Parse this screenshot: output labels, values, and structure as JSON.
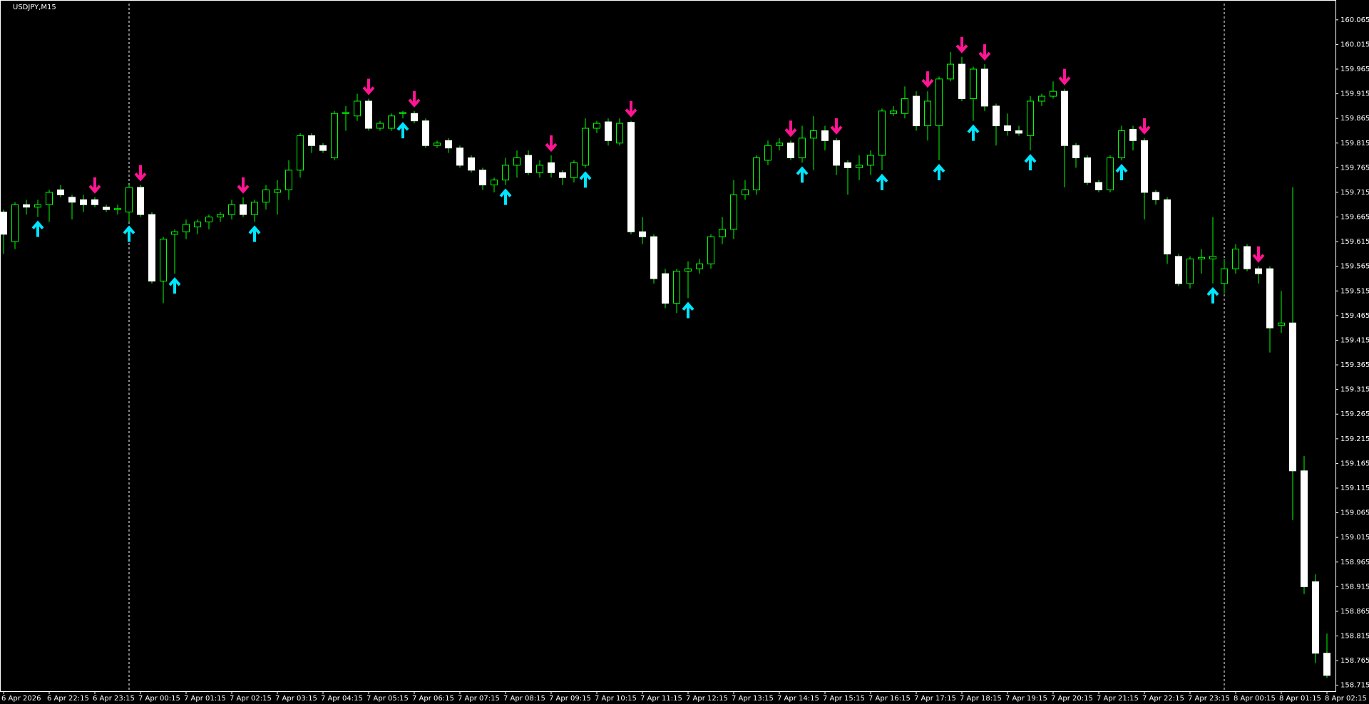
{
  "chart_data": {
    "type": "candlestick",
    "title": "USDJPY,M15",
    "categories": [
      "6 Apr 2026",
      null,
      null,
      null,
      "6 Apr 22:15",
      null,
      null,
      null,
      "6 Apr 23:15",
      null,
      null,
      null,
      "7 Apr 00:15",
      null,
      null,
      null,
      "7 Apr 01:15",
      null,
      null,
      null,
      "7 Apr 02:15",
      null,
      null,
      null,
      "7 Apr 03:15",
      null,
      null,
      null,
      "7 Apr 04:15",
      null,
      null,
      null,
      "7 Apr 05:15",
      null,
      null,
      null,
      "7 Apr 06:15",
      null,
      null,
      null,
      "7 Apr 07:15",
      null,
      null,
      null,
      "7 Apr 08:15",
      null,
      null,
      null,
      "7 Apr 09:15",
      null,
      null,
      null,
      "7 Apr 10:15",
      null,
      null,
      null,
      "7 Apr 11:15",
      null,
      null,
      null,
      "7 Apr 12:15",
      null,
      null,
      null,
      "7 Apr 13:15",
      null,
      null,
      null,
      "7 Apr 14:15",
      null,
      null,
      null,
      "7 Apr 15:15",
      null,
      null,
      null,
      "7 Apr 16:15",
      null,
      null,
      null,
      "7 Apr 17:15",
      null,
      null,
      null,
      "7 Apr 18:15",
      null,
      null,
      null,
      "7 Apr 19:15",
      null,
      null,
      null,
      "7 Apr 20:15",
      null,
      null,
      null,
      "7 Apr 21:15",
      null,
      null,
      null,
      "7 Apr 22:15",
      null,
      null,
      null,
      "7 Apr 23:15",
      null,
      null,
      null,
      "8 Apr 00:15",
      null,
      null,
      null,
      "8 Apr 01:15",
      null,
      null,
      null,
      "8 Apr 02:15"
    ],
    "open": [
      159.675,
      159.615,
      159.69,
      159.685,
      159.69,
      159.72,
      159.705,
      159.7,
      159.7,
      159.685,
      159.68,
      159.675,
      159.725,
      159.67,
      159.535,
      159.63,
      159.635,
      159.645,
      159.655,
      159.665,
      159.67,
      159.69,
      159.67,
      159.695,
      159.715,
      159.72,
      159.76,
      159.83,
      159.81,
      159.785,
      159.875,
      159.87,
      159.9,
      159.845,
      159.845,
      159.875,
      159.875,
      159.86,
      159.81,
      159.82,
      159.805,
      159.785,
      159.76,
      159.73,
      159.74,
      159.77,
      159.79,
      159.755,
      159.775,
      159.755,
      159.745,
      159.77,
      159.845,
      159.858,
      159.815,
      159.857,
      159.635,
      159.625,
      159.55,
      159.49,
      159.555,
      159.56,
      159.57,
      159.625,
      159.64,
      159.71,
      159.72,
      159.78,
      159.81,
      159.815,
      159.785,
      159.825,
      159.84,
      159.82,
      159.775,
      159.765,
      159.77,
      159.79,
      159.875,
      159.875,
      159.91,
      159.85,
      159.85,
      159.945,
      159.975,
      159.905,
      159.965,
      159.89,
      159.85,
      159.84,
      159.83,
      159.9,
      159.91,
      159.92,
      159.81,
      159.785,
      159.735,
      159.72,
      159.785,
      159.843,
      159.82,
      159.715,
      159.7,
      159.585,
      159.53,
      159.58,
      159.58,
      159.53,
      159.56,
      159.605,
      159.56,
      159.56,
      159.445,
      159.45,
      159.15,
      158.925,
      158.78
    ],
    "high": [
      159.68,
      159.695,
      159.7,
      159.7,
      159.72,
      159.73,
      159.71,
      159.71,
      159.705,
      159.69,
      159.69,
      159.73,
      159.73,
      159.675,
      159.625,
      159.64,
      159.66,
      159.66,
      159.67,
      159.675,
      159.7,
      159.705,
      159.7,
      159.73,
      159.74,
      159.78,
      159.835,
      159.835,
      159.815,
      159.88,
      159.89,
      159.915,
      159.905,
      159.86,
      159.875,
      159.88,
      159.88,
      159.865,
      159.82,
      159.825,
      159.81,
      159.79,
      159.765,
      159.745,
      159.785,
      159.8,
      159.8,
      159.78,
      159.79,
      159.76,
      159.78,
      159.865,
      159.86,
      159.865,
      159.865,
      159.86,
      159.665,
      159.63,
      159.56,
      159.56,
      159.575,
      159.58,
      159.63,
      159.665,
      159.74,
      159.74,
      159.79,
      159.82,
      159.825,
      159.82,
      159.85,
      159.87,
      159.85,
      159.825,
      159.78,
      159.79,
      159.8,
      159.885,
      159.89,
      159.93,
      159.92,
      159.92,
      159.95,
      160.0,
      159.99,
      159.97,
      159.975,
      159.895,
      159.875,
      159.85,
      159.91,
      159.915,
      159.94,
      159.925,
      159.815,
      159.79,
      159.74,
      159.79,
      159.85,
      159.85,
      159.825,
      159.72,
      159.705,
      159.59,
      159.585,
      159.6,
      159.665,
      159.58,
      159.61,
      159.61,
      159.565,
      159.565,
      159.515,
      159.725,
      159.18,
      158.94,
      158.82
    ],
    "low": [
      159.59,
      159.6,
      159.67,
      159.665,
      159.655,
      159.705,
      159.66,
      159.675,
      159.685,
      159.675,
      159.67,
      159.655,
      159.665,
      159.53,
      159.49,
      159.55,
      159.62,
      159.63,
      159.64,
      159.655,
      159.66,
      159.665,
      159.655,
      159.68,
      159.67,
      159.7,
      159.745,
      159.795,
      159.795,
      159.78,
      159.84,
      159.86,
      159.84,
      159.84,
      159.84,
      159.865,
      159.855,
      159.805,
      159.805,
      159.795,
      159.765,
      159.755,
      159.72,
      159.715,
      159.73,
      159.745,
      159.75,
      159.745,
      159.745,
      159.73,
      159.735,
      159.765,
      159.835,
      159.81,
      159.81,
      159.63,
      159.61,
      159.53,
      159.48,
      159.47,
      159.5,
      159.55,
      159.56,
      159.61,
      159.62,
      159.7,
      159.71,
      159.77,
      159.8,
      159.78,
      159.775,
      159.76,
      159.8,
      159.75,
      159.71,
      159.74,
      159.75,
      159.76,
      159.87,
      159.865,
      159.84,
      159.82,
      159.78,
      159.94,
      159.9,
      159.86,
      159.88,
      159.81,
      159.83,
      159.83,
      159.8,
      159.89,
      159.905,
      159.725,
      159.765,
      159.73,
      159.715,
      159.715,
      159.78,
      159.8,
      159.66,
      159.69,
      159.57,
      159.525,
      159.52,
      159.55,
      159.53,
      159.51,
      159.55,
      159.555,
      159.53,
      159.39,
      159.43,
      159.05,
      158.9,
      158.76,
      158.73
    ],
    "close": [
      159.63,
      159.69,
      159.685,
      159.69,
      159.715,
      159.71,
      159.695,
      159.69,
      159.69,
      159.68,
      159.682,
      159.725,
      159.67,
      159.535,
      159.62,
      159.635,
      159.65,
      159.655,
      159.665,
      159.67,
      159.69,
      159.67,
      159.695,
      159.72,
      159.72,
      159.76,
      159.83,
      159.81,
      159.8,
      159.875,
      159.877,
      159.9,
      159.845,
      159.855,
      159.87,
      159.877,
      159.86,
      159.81,
      159.815,
      159.805,
      159.77,
      159.76,
      159.73,
      159.74,
      159.77,
      159.785,
      159.755,
      159.77,
      159.755,
      159.745,
      159.775,
      159.845,
      159.855,
      159.82,
      159.855,
      159.635,
      159.625,
      159.54,
      159.49,
      159.555,
      159.56,
      159.57,
      159.625,
      159.64,
      159.71,
      159.72,
      159.785,
      159.81,
      159.815,
      159.785,
      159.825,
      159.84,
      159.82,
      159.77,
      159.765,
      159.77,
      159.79,
      159.88,
      159.88,
      159.905,
      159.85,
      159.9,
      159.945,
      159.975,
      159.905,
      159.965,
      159.89,
      159.85,
      159.84,
      159.835,
      159.9,
      159.91,
      159.92,
      159.81,
      159.785,
      159.735,
      159.72,
      159.785,
      159.84,
      159.82,
      159.715,
      159.7,
      159.59,
      159.53,
      159.58,
      159.583,
      159.585,
      159.56,
      159.6,
      159.56,
      159.55,
      159.44,
      159.45,
      159.15,
      158.915,
      158.78,
      158.735
    ],
    "signals": [
      null,
      null,
      null,
      "buy",
      null,
      null,
      null,
      null,
      "sell",
      null,
      null,
      "buy",
      "sell",
      null,
      null,
      "buy",
      null,
      null,
      null,
      null,
      null,
      "sell",
      "buy",
      null,
      null,
      null,
      null,
      null,
      null,
      null,
      null,
      null,
      "sell",
      null,
      null,
      "buy",
      "sell",
      null,
      null,
      null,
      null,
      null,
      null,
      null,
      "buy",
      null,
      null,
      null,
      "sell",
      null,
      null,
      "buy",
      null,
      null,
      null,
      "sell",
      null,
      null,
      null,
      null,
      "buy",
      null,
      null,
      null,
      null,
      null,
      null,
      null,
      null,
      "sell",
      "buy",
      null,
      null,
      "sell",
      null,
      null,
      null,
      "buy",
      null,
      null,
      null,
      "sell",
      "buy",
      null,
      "sell",
      "buy",
      "sell",
      null,
      null,
      null,
      "buy",
      null,
      null,
      "sell",
      null,
      null,
      null,
      null,
      "buy",
      null,
      "sell",
      null,
      null,
      null,
      null,
      null,
      "buy",
      null,
      null,
      null,
      "sell",
      null,
      null,
      null,
      null,
      null,
      null
    ],
    "ylim": [
      158.703,
      160.098
    ],
    "yticks": [
      160.065,
      160.015,
      159.965,
      159.915,
      159.865,
      159.815,
      159.765,
      159.715,
      159.665,
      159.615,
      159.565,
      159.515,
      159.465,
      159.415,
      159.365,
      159.315,
      159.265,
      159.215,
      159.165,
      159.115,
      159.065,
      159.015,
      158.965,
      158.915,
      158.865,
      158.815,
      158.765,
      158.715
    ],
    "up_color": "#00ff00",
    "down_color": "#ffffff",
    "wick_color": "#00ff00",
    "buy_color": "#00e5ff",
    "sell_color": "#ff1493",
    "period_separators": true,
    "grid": false
  }
}
